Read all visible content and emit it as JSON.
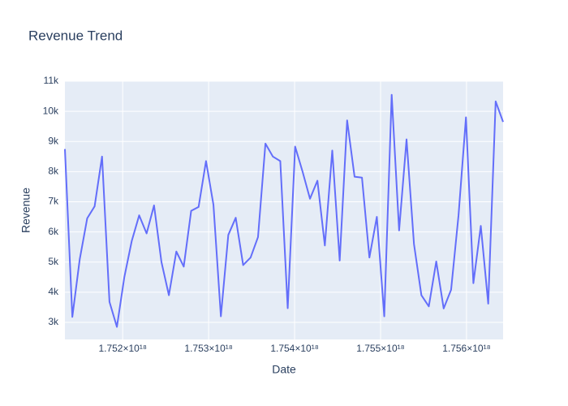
{
  "chart_data": {
    "type": "line",
    "title": "Revenue Trend",
    "x_label": "Date",
    "y_label": "Revenue",
    "color": "#636efa",
    "grid": true,
    "x": [
      1.751328e+18,
      1.7514144e+18,
      1.7515008e+18,
      1.7515872e+18,
      1.7516736e+18,
      1.75176e+18,
      1.7518464e+18,
      1.7519328e+18,
      1.7520192e+18,
      1.7521056e+18,
      1.752192e+18,
      1.7522784e+18,
      1.7523648e+18,
      1.7524512e+18,
      1.7525376e+18,
      1.752624e+18,
      1.7527104e+18,
      1.7527968e+18,
      1.7528832e+18,
      1.7529696e+18,
      1.753056e+18,
      1.7531424e+18,
      1.7532288e+18,
      1.7533152e+18,
      1.7534016e+18,
      1.753488e+18,
      1.7535744e+18,
      1.7536608e+18,
      1.7537472e+18,
      1.7538336e+18,
      1.75392e+18,
      1.7540064e+18,
      1.7540928e+18,
      1.7541792e+18,
      1.7542656e+18,
      1.754352e+18,
      1.7544384e+18,
      1.7545248e+18,
      1.7546112e+18,
      1.7546976e+18,
      1.754784e+18,
      1.7548704e+18,
      1.7549568e+18,
      1.7550432e+18,
      1.7551296e+18,
      1.755216e+18,
      1.7553024e+18,
      1.7553888e+18,
      1.7554752e+18,
      1.7555616e+18,
      1.755648e+18,
      1.7557344e+18,
      1.7558208e+18,
      1.7559072e+18,
      1.7559936e+18,
      1.75608e+18,
      1.7561664e+18,
      1.7562528e+18,
      1.7563392e+18,
      1.7564256e+18
    ],
    "values": [
      8750,
      3180,
      5100,
      6450,
      6850,
      8500,
      3680,
      2850,
      4500,
      5700,
      6550,
      5950,
      6880,
      5000,
      3900,
      5350,
      4850,
      6700,
      6830,
      8350,
      6900,
      3200,
      5900,
      6470,
      4900,
      5150,
      5830,
      8930,
      8500,
      8350,
      3470,
      8830,
      8000,
      7100,
      7700,
      5550,
      8700,
      5050,
      9700,
      7830,
      7800,
      5150,
      6500,
      3200,
      10550,
      6050,
      9070,
      5600,
      3900,
      3530,
      5020,
      3460,
      4080,
      6550,
      9800,
      4300,
      6200,
      3620,
      10330,
      9650
    ],
    "xlim": [
      1.751328e+18,
      1.7564256e+18
    ],
    "xticks": [
      {
        "value": 1.752e+18,
        "label": "1.752×10¹⁸"
      },
      {
        "value": 1.753e+18,
        "label": "1.753×10¹⁸"
      },
      {
        "value": 1.754e+18,
        "label": "1.754×10¹⁸"
      },
      {
        "value": 1.755e+18,
        "label": "1.755×10¹⁸"
      },
      {
        "value": 1.756e+18,
        "label": "1.756×10¹⁸"
      }
    ],
    "ylim": [
      2434,
      11000
    ],
    "yticks": [
      {
        "value": 3000,
        "label": "3k"
      },
      {
        "value": 4000,
        "label": "4k"
      },
      {
        "value": 5000,
        "label": "5k"
      },
      {
        "value": 6000,
        "label": "6k"
      },
      {
        "value": 7000,
        "label": "7k"
      },
      {
        "value": 8000,
        "label": "8k"
      },
      {
        "value": 9000,
        "label": "9k"
      },
      {
        "value": 10000,
        "label": "10k"
      },
      {
        "value": 11000,
        "label": "11k"
      }
    ]
  }
}
